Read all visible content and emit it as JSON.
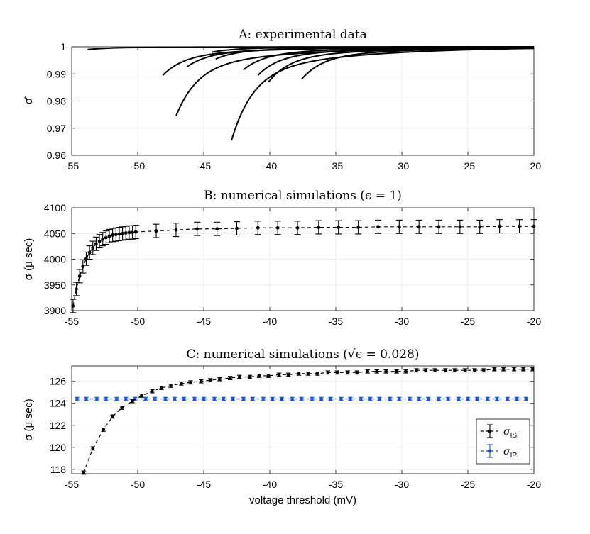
{
  "chart_data": [
    {
      "type": "line",
      "title": "A: experimental data",
      "xlabel": "",
      "ylabel": "σ̂",
      "xlim": [
        -55,
        -20
      ],
      "ylim": [
        0.96,
        1.0
      ],
      "xticks": [
        -55,
        -50,
        -45,
        -40,
        -35,
        -30,
        -25,
        -20
      ],
      "xtick_labels": [
        "-55",
        "-50",
        "-45",
        "-40",
        "-35",
        "-30",
        "-25",
        "-20"
      ],
      "yticks": [
        0.96,
        0.97,
        0.98,
        0.99,
        1.0
      ],
      "ytick_labels": [
        "0.96",
        "0.97",
        "0.98",
        "0.99",
        "1"
      ],
      "grid": true,
      "series": [
        {
          "name": "trace-1",
          "start": [
            -53.8,
            0.999
          ]
        },
        {
          "name": "trace-2",
          "start": [
            -48.1,
            0.9895
          ]
        },
        {
          "name": "trace-3",
          "start": [
            -47.1,
            0.9745
          ]
        },
        {
          "name": "trace-4",
          "start": [
            -46.3,
            0.9925
          ]
        },
        {
          "name": "trace-5",
          "start": [
            -44.1,
            0.9955
          ]
        },
        {
          "name": "trace-6",
          "start": [
            -42.9,
            0.9655
          ]
        },
        {
          "name": "trace-7",
          "start": [
            -42.0,
            0.9915
          ]
        },
        {
          "name": "trace-8",
          "start": [
            -40.9,
            0.9895
          ]
        },
        {
          "name": "trace-9",
          "start": [
            -40.1,
            0.987
          ]
        },
        {
          "name": "trace-10",
          "start": [
            -37.6,
            0.988
          ]
        },
        {
          "name": "trace-11",
          "start": [
            -44.4,
            0.998
          ]
        }
      ]
    },
    {
      "type": "line",
      "title": "B: numerical simulations (ϵ = 1)",
      "xlabel": "",
      "ylabel": "σ (μ sec)",
      "xlim": [
        -55,
        -20
      ],
      "ylim": [
        3900,
        4100
      ],
      "xticks": [
        -55,
        -50,
        -45,
        -40,
        -35,
        -30,
        -25,
        -20
      ],
      "xtick_labels": [
        "-55",
        "-50",
        "-45",
        "-40",
        "-35",
        "-30",
        "-25",
        "-20"
      ],
      "yticks": [
        3900,
        3950,
        4000,
        4050,
        4100
      ],
      "ytick_labels": [
        "3900",
        "3950",
        "4000",
        "4050",
        "4100"
      ],
      "grid": true,
      "series": [
        {
          "name": "sigma",
          "x": [
            -54.9,
            -54.65,
            -54.4,
            -54.15,
            -53.9,
            -53.65,
            -53.4,
            -53.15,
            -52.9,
            -52.65,
            -52.4,
            -52.15,
            -51.9,
            -51.65,
            -51.4,
            -51.15,
            -50.9,
            -50.65,
            -50.4,
            -50.15,
            -48.6,
            -47.1,
            -45.5,
            -44.0,
            -42.5,
            -40.9,
            -39.4,
            -37.9,
            -36.3,
            -34.8,
            -33.3,
            -31.8,
            -30.2,
            -28.7,
            -27.2,
            -25.6,
            -24.1,
            -22.6,
            -21.1,
            -20.0
          ],
          "values": [
            3909,
            3942,
            3967,
            3986,
            4001,
            4013,
            4022,
            4030,
            4035,
            4039,
            4042,
            4045,
            4047,
            4048,
            4049,
            4050,
            4051,
            4052,
            4052,
            4053,
            4055,
            4057,
            4059,
            4059,
            4060,
            4061,
            4061,
            4061,
            4062,
            4062,
            4062,
            4063,
            4063,
            4063,
            4063,
            4063,
            4063,
            4064,
            4064,
            4064
          ],
          "error": 13
        }
      ]
    },
    {
      "type": "line",
      "title": "C: numerical simulations (√ϵ = 0.028)",
      "xlabel": "voltage threshold (mV)",
      "ylabel": "σ (μ sec)",
      "xlim": [
        -55,
        -20
      ],
      "ylim": [
        117.6,
        127.4
      ],
      "xticks": [
        -55,
        -50,
        -45,
        -40,
        -35,
        -30,
        -25,
        -20
      ],
      "xtick_labels": [
        "-55",
        "-50",
        "-45",
        "-40",
        "-35",
        "-30",
        "-25",
        "-20"
      ],
      "yticks": [
        118,
        120,
        122,
        124,
        126
      ],
      "ytick_labels": [
        "118",
        "120",
        "122",
        "124",
        "126"
      ],
      "grid": true,
      "legend_position": "bottom-right",
      "series": [
        {
          "name": "σ",
          "sub": "ISI",
          "color": "#000000",
          "x": [
            -54.1,
            -53.4,
            -52.6,
            -51.9,
            -51.2,
            -50.4,
            -49.7,
            -48.9,
            -48.2,
            -47.5,
            -46.7,
            -46.0,
            -45.2,
            -44.5,
            -43.8,
            -43.0,
            -42.3,
            -41.5,
            -40.8,
            -40.1,
            -39.3,
            -38.6,
            -37.8,
            -37.1,
            -36.4,
            -35.6,
            -34.9,
            -34.1,
            -33.4,
            -32.6,
            -31.9,
            -31.2,
            -30.4,
            -29.7,
            -28.9,
            -28.2,
            -27.5,
            -26.7,
            -26.0,
            -25.2,
            -24.5,
            -23.8,
            -23.0,
            -22.3,
            -21.5,
            -20.8,
            -20.1
          ],
          "values": [
            117.7,
            119.9,
            121.6,
            122.8,
            123.6,
            124.2,
            124.7,
            125.1,
            125.4,
            125.6,
            125.8,
            125.9,
            126.0,
            126.1,
            126.2,
            126.3,
            126.4,
            126.4,
            126.5,
            126.5,
            126.6,
            126.6,
            126.7,
            126.7,
            126.7,
            126.8,
            126.8,
            126.8,
            126.8,
            126.9,
            126.9,
            126.9,
            126.9,
            126.9,
            127.0,
            127.0,
            127.0,
            127.0,
            127.0,
            127.0,
            127.0,
            127.0,
            127.1,
            127.1,
            127.1,
            127.1,
            127.1
          ],
          "error": 0.15
        },
        {
          "name": "σ",
          "sub": "IPI",
          "color": "#1f4fd1",
          "x": [
            -54.6,
            -53.9,
            -53.1,
            -52.4,
            -51.6,
            -50.9,
            -50.2,
            -49.4,
            -48.7,
            -47.9,
            -47.2,
            -46.5,
            -45.7,
            -45.0,
            -44.2,
            -43.5,
            -42.8,
            -42.0,
            -41.3,
            -40.5,
            -39.8,
            -39.1,
            -38.3,
            -37.6,
            -36.8,
            -36.1,
            -35.4,
            -34.6,
            -33.9,
            -33.1,
            -32.4,
            -31.7,
            -30.9,
            -30.2,
            -29.4,
            -28.7,
            -28.0,
            -27.2,
            -26.5,
            -25.7,
            -25.0,
            -24.3,
            -23.5,
            -22.8,
            -22.0,
            -21.3,
            -20.6
          ],
          "values": [
            124.4,
            124.4,
            124.4,
            124.4,
            124.4,
            124.4,
            124.4,
            124.4,
            124.4,
            124.4,
            124.4,
            124.4,
            124.4,
            124.4,
            124.4,
            124.4,
            124.4,
            124.4,
            124.4,
            124.4,
            124.4,
            124.4,
            124.4,
            124.4,
            124.4,
            124.4,
            124.4,
            124.4,
            124.4,
            124.4,
            124.4,
            124.4,
            124.4,
            124.4,
            124.4,
            124.4,
            124.4,
            124.4,
            124.4,
            124.4,
            124.4,
            124.4,
            124.4,
            124.4,
            124.4,
            124.4,
            124.4
          ],
          "error": 0.15
        }
      ]
    }
  ]
}
